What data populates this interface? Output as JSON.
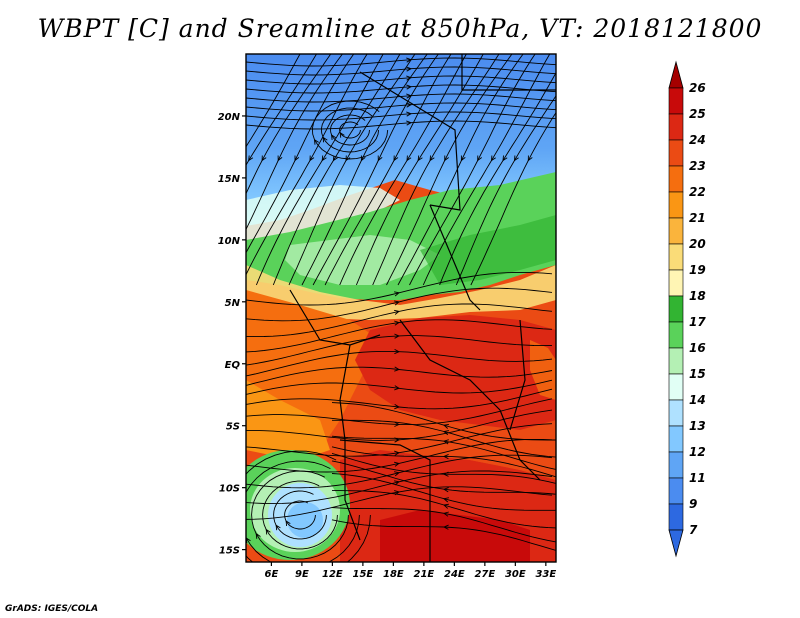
{
  "title": "WBPT [C] and Sreamline at 850hPa, VT: 2018121800",
  "credit": "GrADS: IGES/COLA",
  "map": {
    "lon_range": [
      3.5,
      34
    ],
    "lat_range": [
      -16,
      25
    ],
    "lat_ticks": [
      {
        "value": 20,
        "label": "20N"
      },
      {
        "value": 15,
        "label": "15N"
      },
      {
        "value": 10,
        "label": "10N"
      },
      {
        "value": 5,
        "label": "5N"
      },
      {
        "value": 0,
        "label": "EQ"
      },
      {
        "value": -5,
        "label": "5S"
      },
      {
        "value": -10,
        "label": "10S"
      },
      {
        "value": -15,
        "label": "15S"
      }
    ],
    "lon_ticks": [
      {
        "value": 6,
        "label": "6E"
      },
      {
        "value": 9,
        "label": "9E"
      },
      {
        "value": 12,
        "label": "12E"
      },
      {
        "value": 15,
        "label": "15E"
      },
      {
        "value": 18,
        "label": "18E"
      },
      {
        "value": 21,
        "label": "21E"
      },
      {
        "value": 24,
        "label": "24E"
      },
      {
        "value": 27,
        "label": "27E"
      },
      {
        "value": 30,
        "label": "30E"
      },
      {
        "value": 33,
        "label": "33E"
      }
    ]
  },
  "colorbar": {
    "levels": [
      {
        "label": "26",
        "color": "#a50000"
      },
      {
        "label": "25",
        "color": "#c80a0a"
      },
      {
        "label": "24",
        "color": "#dc2814"
      },
      {
        "label": "23",
        "color": "#eb4b14"
      },
      {
        "label": "22",
        "color": "#f56e0f"
      },
      {
        "label": "21",
        "color": "#fa9614"
      },
      {
        "label": "20",
        "color": "#fab43c"
      },
      {
        "label": "19",
        "color": "#fadc78"
      },
      {
        "label": "18",
        "color": "#fff5b4"
      },
      {
        "label": "17",
        "color": "#32b432"
      },
      {
        "label": "16",
        "color": "#5ad25a"
      },
      {
        "label": "15",
        "color": "#b4f0b4"
      },
      {
        "label": "14",
        "color": "#e1fff5"
      },
      {
        "label": "13",
        "color": "#afe1ff"
      },
      {
        "label": "12",
        "color": "#82c8ff"
      },
      {
        "label": "11",
        "color": "#5fa5f5"
      },
      {
        "label": "9",
        "color": "#4b8cf0"
      },
      {
        "label": "7",
        "color": "#2d69e1"
      }
    ],
    "top_arrow_color": "#a50000",
    "bottom_arrow_color": "#2d69e1"
  }
}
